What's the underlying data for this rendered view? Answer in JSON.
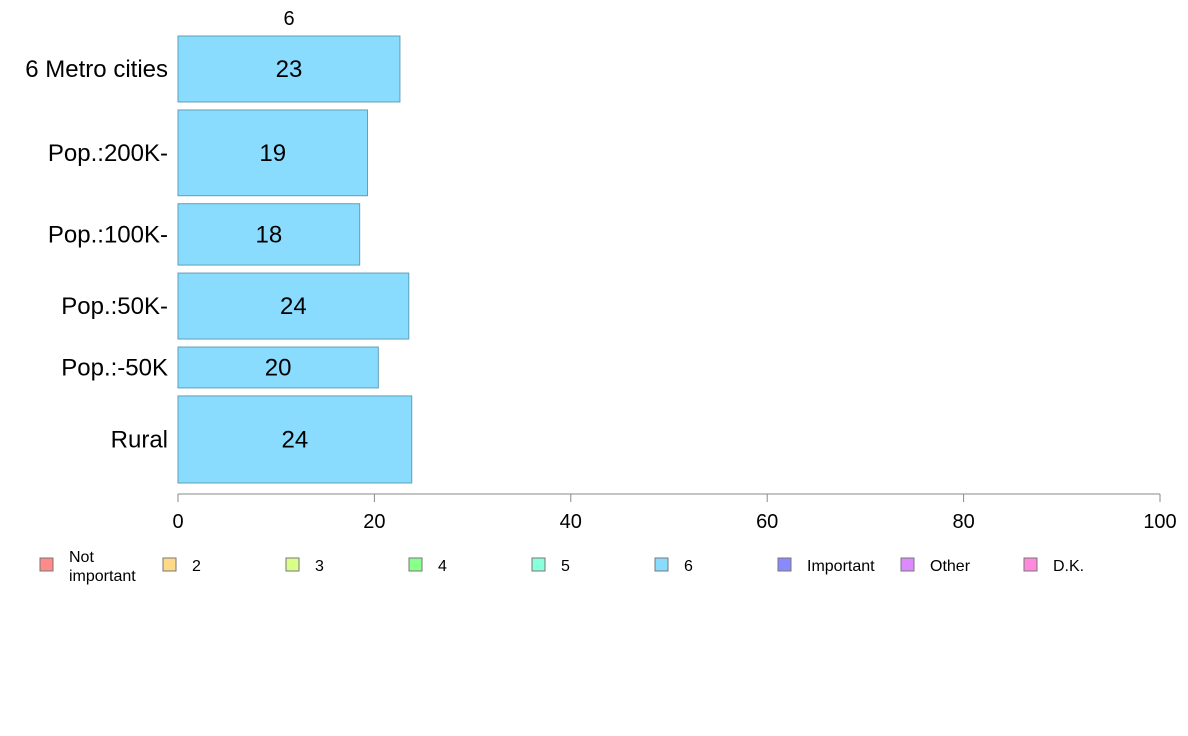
{
  "chart_data": {
    "type": "bar",
    "orientation": "horizontal",
    "title": "6",
    "categories": [
      "6 Metro cities",
      "Pop.:200K-",
      "Pop.:100K-",
      "Pop.:50K-",
      "Pop.:-50K",
      "Rural"
    ],
    "series": [
      {
        "name": "6",
        "color": "#8adcff",
        "values": [
          22.6,
          19.3,
          18.5,
          23.5,
          20.4,
          23.8
        ],
        "labels": [
          "23",
          "19",
          "18",
          "24",
          "20",
          "24"
        ]
      }
    ],
    "bar_weights": [
      1.0,
      1.3,
      0.93,
      1.0,
      0.62,
      1.32
    ],
    "xlim": [
      0,
      100
    ],
    "xticks": [
      0,
      20,
      40,
      60,
      80,
      100
    ],
    "xlabel": "",
    "ylabel": "",
    "grid": false,
    "legend_position": "bottom",
    "legend": [
      {
        "label": "Not\nimportant",
        "color": "#ff8a8a"
      },
      {
        "label": "2",
        "color": "#ffd98a"
      },
      {
        "label": "3",
        "color": "#d9ff8a"
      },
      {
        "label": "4",
        "color": "#8aff8a"
      },
      {
        "label": "5",
        "color": "#8affdc"
      },
      {
        "label": "6",
        "color": "#8adcff"
      },
      {
        "label": "Important",
        "color": "#8a8aff"
      },
      {
        "label": "Other",
        "color": "#dc8aff"
      },
      {
        "label": "D.K.",
        "color": "#ff8adc"
      }
    ]
  }
}
